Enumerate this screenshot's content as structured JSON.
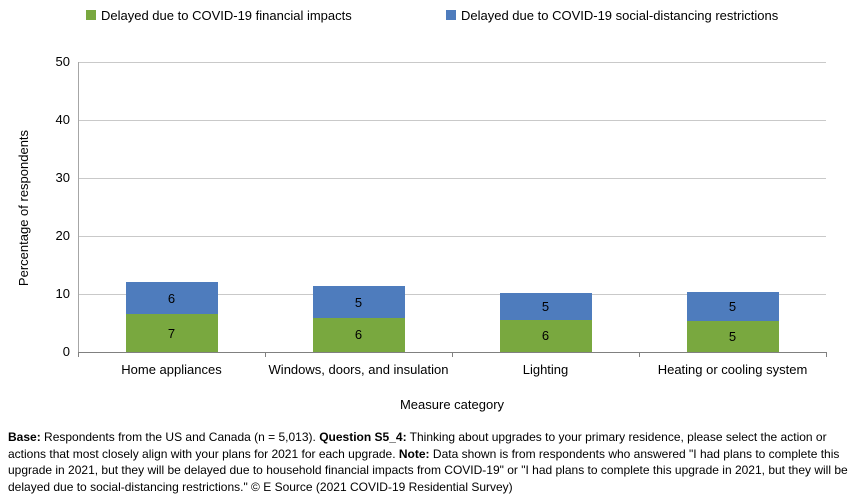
{
  "legend": {
    "items": [
      {
        "key": "financial",
        "label": "Delayed due to COVID-19 financial impacts",
        "color": "#79A83F"
      },
      {
        "key": "social-distancing",
        "label": "Delayed due to COVID-19 social-distancing restrictions",
        "color": "#4E7CBD"
      }
    ]
  },
  "chart_data": {
    "type": "bar",
    "stacked": true,
    "title": "",
    "categories": [
      "Home appliances",
      "Windows, doors, and insulation",
      "Lighting",
      "Heating or cooling system"
    ],
    "series": [
      {
        "key": "financial",
        "name": "Delayed due to COVID-19 financial impacts",
        "color": "#79A83F",
        "labels": [
          "7",
          "6",
          "6",
          "5"
        ],
        "values": [
          6.5,
          5.9,
          5.6,
          5.3
        ]
      },
      {
        "key": "social-distancing",
        "name": "Delayed due to COVID-19 social-distancing restrictions",
        "color": "#4E7CBD",
        "labels": [
          "6",
          "5",
          "5",
          "5"
        ],
        "values": [
          5.5,
          5.4,
          4.6,
          5.0
        ]
      }
    ],
    "xlabel": "Measure category",
    "ylabel": "Percentage of respondents",
    "ylim": [
      0,
      50
    ],
    "yticks": [
      0,
      10,
      20,
      30,
      40,
      50
    ],
    "grid": true,
    "legend_position": "top"
  },
  "footer": {
    "segments": [
      {
        "bold": true,
        "text": "Base:"
      },
      {
        "bold": false,
        "text": " Respondents from the US and Canada (n = 5,013). "
      },
      {
        "bold": true,
        "text": "Question S5_4:"
      },
      {
        "bold": false,
        "text": " Thinking about upgrades to your primary residence, please select the action or actions that most closely align with your plans for 2021 for each upgrade. "
      },
      {
        "bold": true,
        "text": "Note:"
      },
      {
        "bold": false,
        "text": " Data shown is from respondents who answered \"I had plans to complete this upgrade in 2021, but they will be delayed due to household financial impacts from COVID-19\" or \"I had plans to complete this upgrade in 2021, but they will be delayed due to social-distancing restrictions.\" © E Source (2021 COVID-19 Residential Survey)"
      }
    ]
  }
}
